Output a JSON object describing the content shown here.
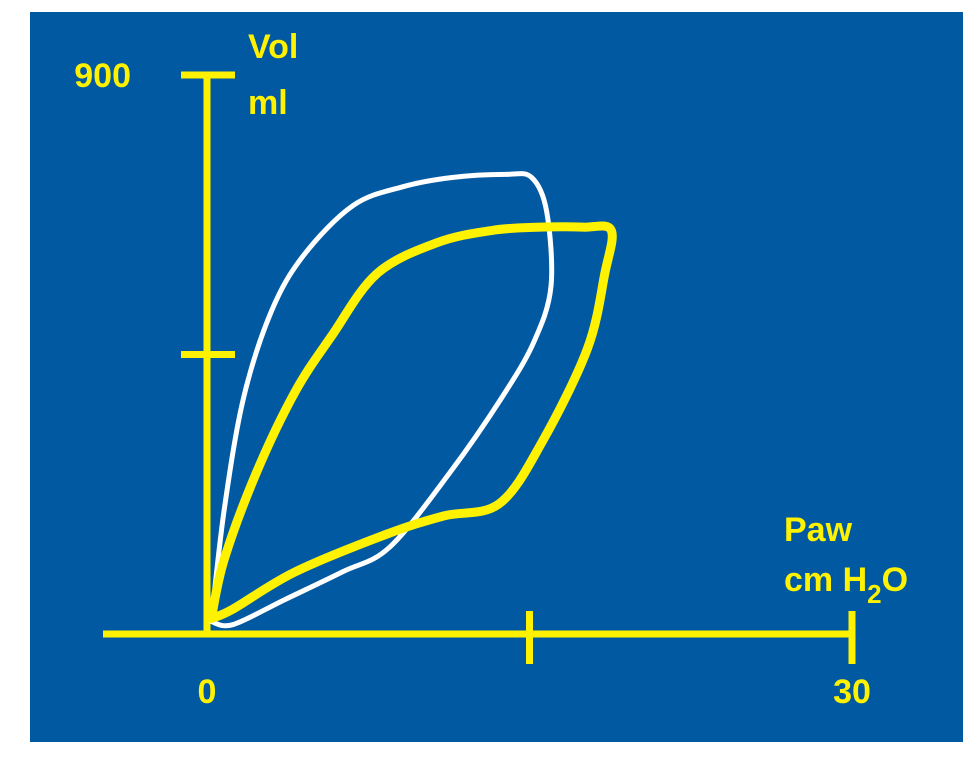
{
  "chart_data": {
    "type": "line",
    "title": "",
    "xlabel": "Paw",
    "xunit_prefix": "cm H",
    "xunit_sub": "2",
    "xunit_suffix": "O",
    "ylabel": "Vol",
    "yunit": "ml",
    "xlim": [
      0,
      30
    ],
    "ylim": [
      0,
      900
    ],
    "x_ticks": [
      0,
      15,
      30
    ],
    "y_ticks": [
      0,
      450,
      900
    ],
    "x_tick_labels": {
      "0": "0",
      "30": "30"
    },
    "y_tick_labels": {
      "900": "900"
    },
    "grid": false,
    "colors": {
      "background": "#0059A1",
      "axes": "#FFF200",
      "loop_white": "#FFFFFF",
      "loop_yellow": "#FFF200"
    },
    "series": [
      {
        "color": "#FFFFFF",
        "x": [
          0.2,
          0.8,
          1.7,
          3.0,
          4.5,
          6.8,
          9.1,
          11.4,
          13.9,
          15.1,
          15.8,
          16.0,
          15.2,
          13.7,
          11.3,
          8.5,
          6.3,
          3.6,
          1.2,
          0.2
        ],
        "y": [
          20,
          200,
          380,
          520,
          610,
          690,
          720,
          735,
          740,
          735,
          680,
          560,
          470,
          380,
          260,
          140,
          100,
          55,
          15,
          20
        ]
      },
      {
        "color": "#FFF200",
        "x": [
          0.2,
          0.8,
          2.3,
          4.1,
          5.8,
          7.9,
          10.7,
          13.3,
          15.5,
          17.5,
          18.8,
          18.5,
          17.7,
          15.6,
          13.6,
          11.0,
          8.3,
          4.1,
          1.2,
          0.2
        ],
        "y": [
          25,
          120,
          260,
          390,
          480,
          580,
          630,
          650,
          655,
          655,
          650,
          580,
          460,
          310,
          210,
          190,
          160,
          100,
          40,
          25
        ]
      }
    ]
  }
}
